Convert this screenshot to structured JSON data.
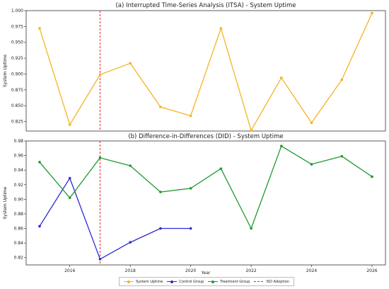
{
  "chart_data": [
    {
      "type": "line",
      "title": "(a) Interrupted Time-Series Analysis (ITSA) - System Uptime",
      "xlabel": "",
      "ylabel": "System Uptime",
      "xlim": [
        2015,
        2026
      ],
      "ylim": [
        0.81,
        1.0
      ],
      "yticks": [
        0.825,
        0.85,
        0.875,
        0.9,
        0.925,
        0.95,
        0.975,
        1.0
      ],
      "ytick_labels": [
        "0.825",
        "0.850",
        "0.875",
        "0.900",
        "0.925",
        "0.950",
        "0.975",
        "1.000"
      ],
      "grid": false,
      "series": [
        {
          "name": "System Uptime",
          "color": "#f5b323",
          "x": [
            2015,
            2016,
            2017,
            2018,
            2019,
            2020,
            2021,
            2022,
            2023,
            2024,
            2025,
            2026
          ],
          "values": [
            0.972,
            0.82,
            0.899,
            0.917,
            0.848,
            0.834,
            0.972,
            0.811,
            0.894,
            0.823,
            0.891,
            0.996
          ]
        }
      ],
      "vline": {
        "x": 2017,
        "label": "ISO Adoption",
        "color": "#e8262b",
        "style": "dashed"
      }
    },
    {
      "type": "line",
      "title": "(b) Difference-in-Differences (DID) - System Uptime",
      "xlabel": "Year",
      "ylabel": "System Uptime",
      "xlim": [
        2015,
        2026
      ],
      "ylim": [
        0.81,
        0.98
      ],
      "xticks": [
        2016,
        2018,
        2020,
        2022,
        2024,
        2026
      ],
      "xtick_labels": [
        "2016",
        "2018",
        "2020",
        "2022",
        "2024",
        "2026"
      ],
      "yticks": [
        0.82,
        0.84,
        0.86,
        0.88,
        0.9,
        0.92,
        0.94,
        0.96,
        0.98
      ],
      "ytick_labels": [
        "0.82",
        "0.84",
        "0.86",
        "0.88",
        "0.90",
        "0.92",
        "0.94",
        "0.96",
        "0.98"
      ],
      "grid": false,
      "series": [
        {
          "name": "Control Group",
          "color": "#2b2bd6",
          "x": [
            2015,
            2016,
            2017,
            2018,
            2019,
            2020
          ],
          "values": [
            0.863,
            0.929,
            0.818,
            0.841,
            0.86,
            0.86
          ]
        },
        {
          "name": "Treatment Group",
          "color": "#1f9a2f",
          "x": [
            2015,
            2016,
            2017,
            2018,
            2019,
            2020,
            2021,
            2022,
            2023,
            2024,
            2025,
            2026
          ],
          "values": [
            0.951,
            0.902,
            0.957,
            0.946,
            0.91,
            0.915,
            0.942,
            0.86,
            0.973,
            0.948,
            0.959,
            0.931
          ]
        }
      ],
      "vline": {
        "x": 2017,
        "label": "ISO Adoption",
        "color": "#e8262b",
        "style": "dashed"
      }
    }
  ],
  "legend": {
    "placement": "bottom-center",
    "items": [
      {
        "label": "System Uptime",
        "color": "#f5b323",
        "style": "solid-marker"
      },
      {
        "label": "Control Group",
        "color": "#2b2bd6",
        "style": "solid-marker"
      },
      {
        "label": "Treatment Group",
        "color": "#1f9a2f",
        "style": "solid-marker"
      },
      {
        "label": "ISO Adoption",
        "color": "#e8262b",
        "style": "dashed"
      }
    ]
  }
}
